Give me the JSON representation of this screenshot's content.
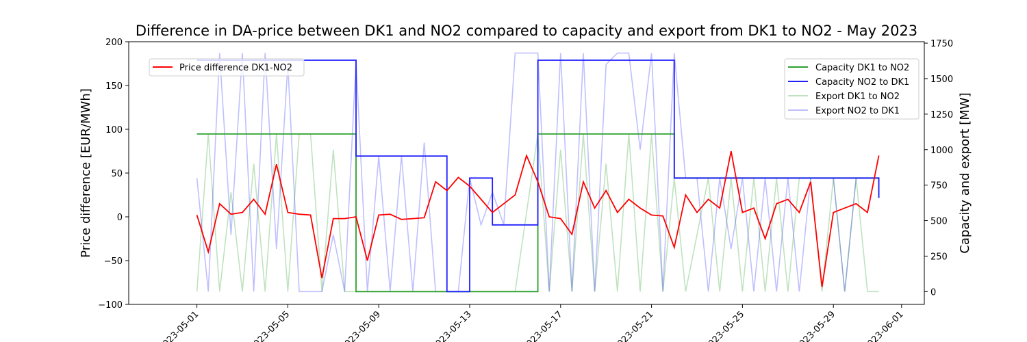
{
  "chart_data": {
    "type": "line",
    "title": "Difference in DA-price between DK1 and NO2 compared to capacity and export from DK1 to NO2 - May 2023",
    "ylabel_left": "Price difference [EUR/MWh]",
    "ylabel_right": "Capacity and export [MW]",
    "ylim_left": [
      -100,
      200
    ],
    "ylim_right": [
      -90,
      1760
    ],
    "yticks_left": [
      "−100",
      "−50",
      "0",
      "50",
      "100",
      "150",
      "200"
    ],
    "yticks_right": [
      "0",
      "250",
      "500",
      "750",
      "1000",
      "1250",
      "1500",
      "1750"
    ],
    "xlim": [
      "2023-04-28T00:00",
      "2023-06-02T00:00"
    ],
    "xticks": [
      "2023-05-01",
      "2023-05-05",
      "2023-05-09",
      "2023-05-13",
      "2023-05-17",
      "2023-05-21",
      "2023-05-25",
      "2023-05-29",
      "2023-06-01"
    ],
    "grid": false,
    "legend_left_position": "upper-left",
    "legend_right_position": "upper-right",
    "price_series": {
      "name": "Price difference DK1-NO2",
      "color": "#ff0000",
      "axis": "left",
      "x": [
        "2023-05-01",
        "2023-05-01T12:00",
        "2023-05-02",
        "2023-05-02T12:00",
        "2023-05-03",
        "2023-05-03T12:00",
        "2023-05-04",
        "2023-05-04T12:00",
        "2023-05-05",
        "2023-05-05T12:00",
        "2023-05-06",
        "2023-05-06T12:00",
        "2023-05-07",
        "2023-05-07T12:00",
        "2023-05-08",
        "2023-05-08T12:00",
        "2023-05-09",
        "2023-05-09T12:00",
        "2023-05-10",
        "2023-05-10T12:00",
        "2023-05-11",
        "2023-05-11T12:00",
        "2023-05-12",
        "2023-05-12T12:00",
        "2023-05-13",
        "2023-05-13T12:00",
        "2023-05-14",
        "2023-05-14T12:00",
        "2023-05-15",
        "2023-05-15T12:00",
        "2023-05-16",
        "2023-05-16T12:00",
        "2023-05-17",
        "2023-05-17T12:00",
        "2023-05-18",
        "2023-05-18T12:00",
        "2023-05-19",
        "2023-05-19T12:00",
        "2023-05-20",
        "2023-05-20T12:00",
        "2023-05-21",
        "2023-05-21T12:00",
        "2023-05-22",
        "2023-05-22T12:00",
        "2023-05-23",
        "2023-05-23T12:00",
        "2023-05-24",
        "2023-05-24T12:00",
        "2023-05-25",
        "2023-05-25T12:00",
        "2023-05-26",
        "2023-05-26T12:00",
        "2023-05-27",
        "2023-05-27T12:00",
        "2023-05-28",
        "2023-05-28T12:00",
        "2023-05-29",
        "2023-05-29T12:00",
        "2023-05-30",
        "2023-05-30T12:00",
        "2023-05-31"
      ],
      "values": [
        2,
        -40,
        15,
        3,
        5,
        20,
        3,
        60,
        5,
        3,
        2,
        -70,
        -2,
        -2,
        0,
        -50,
        2,
        3,
        -3,
        -2,
        -1,
        40,
        30,
        45,
        35,
        20,
        5,
        15,
        25,
        70,
        40,
        0,
        -2,
        -20,
        40,
        10,
        30,
        5,
        20,
        10,
        2,
        1,
        -35,
        25,
        5,
        20,
        10,
        75,
        5,
        10,
        -25,
        15,
        20,
        5,
        40,
        -80,
        5,
        10,
        15,
        5,
        70
      ]
    },
    "capacity_series": [
      {
        "name": "Capacity DK1 to NO2",
        "color": "#2ca02c",
        "axis": "right",
        "steps": [
          [
            "2023-05-01",
            1110
          ],
          [
            "2023-05-08",
            0
          ],
          [
            "2023-05-16",
            1110
          ],
          [
            "2023-05-22",
            800
          ],
          [
            "2023-05-31",
            660
          ]
        ]
      },
      {
        "name": "Capacity NO2 to DK1",
        "color": "#1f1fff",
        "axis": "right",
        "steps": [
          [
            "2023-05-01",
            1630
          ],
          [
            "2023-05-08",
            955
          ],
          [
            "2023-05-12",
            0
          ],
          [
            "2023-05-13",
            800
          ],
          [
            "2023-05-14",
            470
          ],
          [
            "2023-05-16",
            1630
          ],
          [
            "2023-05-22",
            800
          ],
          [
            "2023-05-31",
            660
          ]
        ]
      }
    ],
    "export_series": [
      {
        "name": "Export DK1 to NO2",
        "color": "#2ca02c",
        "opacity": 0.3,
        "axis": "right",
        "x": [
          "2023-05-01",
          "2023-05-01T12:00",
          "2023-05-02",
          "2023-05-02T12:00",
          "2023-05-03",
          "2023-05-03T12:00",
          "2023-05-04",
          "2023-05-04T12:00",
          "2023-05-05",
          "2023-05-05T12:00",
          "2023-05-06",
          "2023-05-06T12:00",
          "2023-05-07",
          "2023-05-07T12:00",
          "2023-05-08",
          "2023-05-09",
          "2023-05-10",
          "2023-05-11",
          "2023-05-12",
          "2023-05-13",
          "2023-05-14",
          "2023-05-15",
          "2023-05-16",
          "2023-05-16T12:00",
          "2023-05-17",
          "2023-05-17T12:00",
          "2023-05-18",
          "2023-05-18T12:00",
          "2023-05-19",
          "2023-05-19T12:00",
          "2023-05-20",
          "2023-05-20T12:00",
          "2023-05-21",
          "2023-05-21T12:00",
          "2023-05-22",
          "2023-05-22T12:00",
          "2023-05-23",
          "2023-05-23T12:00",
          "2023-05-24",
          "2023-05-24T12:00",
          "2023-05-25",
          "2023-05-25T12:00",
          "2023-05-26",
          "2023-05-26T12:00",
          "2023-05-27",
          "2023-05-27T12:00",
          "2023-05-28",
          "2023-05-28T12:00",
          "2023-05-29",
          "2023-05-29T12:00",
          "2023-05-30",
          "2023-05-30T12:00",
          "2023-05-31"
        ],
        "values": [
          0,
          1110,
          0,
          700,
          0,
          900,
          0,
          1110,
          0,
          1110,
          1110,
          0,
          1000,
          0,
          0,
          0,
          0,
          0,
          0,
          0,
          0,
          0,
          1110,
          0,
          1000,
          0,
          1110,
          0,
          900,
          0,
          1110,
          0,
          1110,
          0,
          800,
          0,
          400,
          800,
          0,
          800,
          0,
          800,
          0,
          800,
          0,
          800,
          800,
          0,
          800,
          0,
          800,
          0,
          0
        ]
      },
      {
        "name": "Export NO2 to DK1",
        "color": "#0000ff",
        "opacity": 0.25,
        "axis": "right",
        "x": [
          "2023-05-01",
          "2023-05-01T12:00",
          "2023-05-02",
          "2023-05-02T12:00",
          "2023-05-03",
          "2023-05-03T12:00",
          "2023-05-04",
          "2023-05-04T12:00",
          "2023-05-05",
          "2023-05-05T12:00",
          "2023-05-06",
          "2023-05-06T12:00",
          "2023-05-07",
          "2023-05-07T12:00",
          "2023-05-08",
          "2023-05-08T12:00",
          "2023-05-09",
          "2023-05-09T12:00",
          "2023-05-10",
          "2023-05-10T12:00",
          "2023-05-11",
          "2023-05-11T12:00",
          "2023-05-12",
          "2023-05-12T12:00",
          "2023-05-13",
          "2023-05-13T12:00",
          "2023-05-14",
          "2023-05-14T12:00",
          "2023-05-15",
          "2023-05-15T12:00",
          "2023-05-16",
          "2023-05-16T12:00",
          "2023-05-17",
          "2023-05-17T12:00",
          "2023-05-18",
          "2023-05-18T12:00",
          "2023-05-19",
          "2023-05-19T12:00",
          "2023-05-20",
          "2023-05-20T12:00",
          "2023-05-21",
          "2023-05-21T12:00",
          "2023-05-22",
          "2023-05-22T12:00",
          "2023-05-23",
          "2023-05-23T12:00",
          "2023-05-24",
          "2023-05-24T12:00",
          "2023-05-25",
          "2023-05-25T12:00",
          "2023-05-26",
          "2023-05-26T12:00",
          "2023-05-27",
          "2023-05-27T12:00",
          "2023-05-28",
          "2023-05-28T12:00",
          "2023-05-29",
          "2023-05-29T12:00",
          "2023-05-30",
          "2023-05-30T12:00",
          "2023-05-31"
        ],
        "values": [
          800,
          0,
          1680,
          400,
          1680,
          0,
          1680,
          300,
          1600,
          0,
          0,
          0,
          400,
          0,
          1630,
          0,
          955,
          0,
          955,
          0,
          1050,
          0,
          0,
          0,
          800,
          470,
          700,
          470,
          1680,
          1680,
          1680,
          0,
          1680,
          0,
          1680,
          0,
          1600,
          1680,
          1680,
          1000,
          1680,
          0,
          1680,
          800,
          800,
          0,
          800,
          300,
          800,
          0,
          800,
          0,
          800,
          0,
          800,
          800,
          800,
          0,
          800,
          800,
          800
        ]
      }
    ]
  }
}
